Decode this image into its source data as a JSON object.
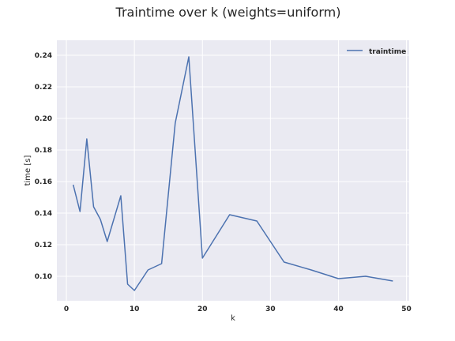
{
  "chart_data": {
    "type": "line",
    "title": "Traintime over k (weights=uniform)",
    "xlabel": "k",
    "ylabel": "time [s]",
    "xlim": [
      -1.4,
      50.4
    ],
    "ylim": [
      0.0845,
      0.2495
    ],
    "xticks": [
      0,
      10,
      20,
      30,
      40,
      50
    ],
    "yticks": [
      0.1,
      0.12,
      0.14,
      0.16,
      0.18,
      0.2,
      0.22,
      0.24
    ],
    "xtick_labels": [
      "0",
      "10",
      "20",
      "30",
      "40",
      "50"
    ],
    "ytick_labels": [
      "0.10",
      "0.12",
      "0.14",
      "0.16",
      "0.18",
      "0.20",
      "0.22",
      "0.24"
    ],
    "grid": true,
    "legend_position": "top-right",
    "series": [
      {
        "name": "traintime",
        "color": "#4c72b0",
        "x": [
          1,
          2,
          3,
          4,
          5,
          6,
          8,
          9,
          10,
          12,
          14,
          16,
          18,
          20,
          24,
          28,
          32,
          36,
          40,
          44,
          48
        ],
        "y": [
          0.158,
          0.141,
          0.187,
          0.144,
          0.136,
          0.122,
          0.151,
          0.095,
          0.091,
          0.104,
          0.108,
          0.197,
          0.239,
          0.1115,
          0.139,
          0.135,
          0.109,
          0.104,
          0.0985,
          0.1,
          0.097
        ]
      }
    ]
  }
}
